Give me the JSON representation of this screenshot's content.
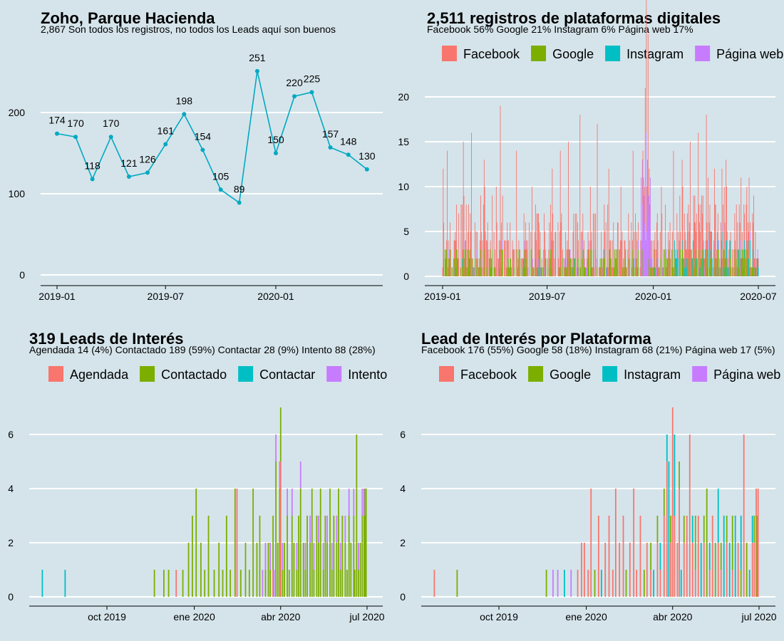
{
  "colors": {
    "background": "#d5e4eb",
    "line": "#00a9c1",
    "Facebook": "#f8766d",
    "Google": "#7cae00",
    "Instagram": "#00bfc4",
    "Página web": "#c77cff",
    "Agendada": "#f8766d",
    "Contactado": "#7cae00",
    "Contactar": "#00bfc4",
    "Intento": "#c77cff",
    "grid": "#ffffff"
  },
  "chart_data": [
    {
      "id": "monthly",
      "type": "line",
      "title": "Zoho, Parque Hacienda",
      "subtitle": "2,867 Son todos los registros, no todos los Leads aquí son buenos",
      "x": [
        "2019-01",
        "2019-02",
        "2019-03",
        "2019-04",
        "2019-05",
        "2019-06",
        "2019-07",
        "2019-08",
        "2019-09",
        "2019-10",
        "2019-11",
        "2019-12",
        "2020-01",
        "2020-02",
        "2020-03",
        "2020-04",
        "2020-05",
        "2020-06"
      ],
      "values": [
        174,
        170,
        118,
        170,
        121,
        126,
        161,
        198,
        154,
        105,
        89,
        251,
        150,
        220,
        225,
        157,
        148,
        130
      ],
      "ylim": [
        0,
        251
      ],
      "yticks": [
        0,
        100,
        200
      ],
      "xticks": [
        "2019-01",
        "2019-07",
        "2020-01"
      ],
      "grid": "horizontal",
      "legend": "none"
    },
    {
      "id": "platform-daily",
      "type": "bar",
      "stacked": true,
      "title": "2,511 registros de plataformas digitales",
      "subtitle": "Facebook 56% Google 21% Instagram 6% Página web 17%",
      "legend_position": "top",
      "series_names": [
        "Facebook",
        "Google",
        "Instagram",
        "Página web"
      ],
      "x_range": [
        "2019-01-01",
        "2020-07-01"
      ],
      "ylim": [
        0,
        21
      ],
      "yticks": [
        0,
        5,
        10,
        15,
        20
      ],
      "xticks": [
        "2019-01",
        "2019-07",
        "2020-01",
        "2020-07"
      ],
      "peaks": [
        {
          "date": "2019-01-02",
          "Facebook": 12
        },
        {
          "date": "2019-01-09",
          "Facebook": 14
        },
        {
          "date": "2019-02-06",
          "Facebook": 15
        },
        {
          "date": "2019-02-20",
          "Facebook": 16
        },
        {
          "date": "2019-03-14",
          "Facebook": 13
        },
        {
          "date": "2019-04-04",
          "Facebook": 10
        },
        {
          "date": "2019-04-11",
          "Facebook": 19
        },
        {
          "date": "2019-05-09",
          "Facebook": 14
        },
        {
          "date": "2019-06-05",
          "Facebook": 10
        },
        {
          "date": "2019-07-10",
          "Facebook": 12
        },
        {
          "date": "2019-07-24",
          "Facebook": 14
        },
        {
          "date": "2019-08-07",
          "Facebook": 15
        },
        {
          "date": "2019-08-27",
          "Facebook": 18
        },
        {
          "date": "2019-09-26",
          "Facebook": 17
        },
        {
          "date": "2019-10-16",
          "Facebook": 12
        },
        {
          "date": "2019-11-06",
          "Facebook": 10
        },
        {
          "date": "2019-11-27",
          "Facebook": 14
        },
        {
          "date": "2019-12-18",
          "Facebook": 8,
          "Página web": 13
        },
        {
          "date": "2019-12-20",
          "Facebook": 21,
          "Página web": 16
        },
        {
          "date": "2019-12-23",
          "Facebook": 18,
          "Página web": 9
        },
        {
          "date": "2020-01-15",
          "Facebook": 10
        },
        {
          "date": "2020-02-05",
          "Facebook": 14
        },
        {
          "date": "2020-02-20",
          "Facebook": 10,
          "Google": 3
        },
        {
          "date": "2020-03-05",
          "Facebook": 15
        },
        {
          "date": "2020-03-19",
          "Facebook": 13,
          "Google": 3
        },
        {
          "date": "2020-04-02",
          "Facebook": 18
        },
        {
          "date": "2020-04-16",
          "Facebook": 12
        },
        {
          "date": "2020-05-06",
          "Facebook": 9,
          "Instagram": 4
        },
        {
          "date": "2020-06-10",
          "Facebook": 8
        }
      ]
    },
    {
      "id": "leads-status",
      "type": "bar",
      "stacked": true,
      "title": "319 Leads de Interés",
      "subtitle": "Agendada 14 (4%) Contactado 189 (59%) Contactar 28 (9%) Intento 88 (28%)",
      "legend_position": "top",
      "series_names": [
        "Agendada",
        "Contactado",
        "Contactar",
        "Intento"
      ],
      "x_range": [
        "2019-07-20",
        "2020-07-05"
      ],
      "ylim": [
        0,
        7
      ],
      "yticks": [
        0,
        2,
        4,
        6
      ],
      "xticks": [
        "oct 2019",
        "ene 2020",
        "abr 2020",
        "jul 2020"
      ],
      "tick_dates": [
        "2019-10-01",
        "2020-01-01",
        "2020-04-01",
        "2020-07-01"
      ],
      "points": [
        {
          "date": "2019-07-25",
          "Contactar": 1
        },
        {
          "date": "2019-08-18",
          "Contactar": 1
        },
        {
          "date": "2019-11-20",
          "Contactado": 1
        },
        {
          "date": "2019-11-30",
          "Contactado": 1
        },
        {
          "date": "2019-12-05",
          "Contactado": 1
        },
        {
          "date": "2019-12-13",
          "Agendada": 1
        },
        {
          "date": "2019-12-20",
          "Contactado": 1
        },
        {
          "date": "2019-12-26",
          "Contactado": 2
        },
        {
          "date": "2019-12-30",
          "Contactado": 3
        },
        {
          "date": "2020-01-03",
          "Contactado": 4
        },
        {
          "date": "2020-01-08",
          "Contactado": 2
        },
        {
          "date": "2020-01-12",
          "Contactado": 1
        },
        {
          "date": "2020-01-16",
          "Contactado": 3
        },
        {
          "date": "2020-01-22",
          "Contactado": 1
        },
        {
          "date": "2020-01-27",
          "Contactado": 2
        },
        {
          "date": "2020-01-31",
          "Contactado": 1
        },
        {
          "date": "2020-02-04",
          "Contactado": 3
        },
        {
          "date": "2020-02-08",
          "Contactado": 1
        },
        {
          "date": "2020-02-13",
          "Contactado": 4
        },
        {
          "date": "2020-02-15",
          "Agendada": 4
        },
        {
          "date": "2020-02-19",
          "Contactado": 1
        },
        {
          "date": "2020-02-24",
          "Contactado": 2
        },
        {
          "date": "2020-02-28",
          "Contactado": 1
        },
        {
          "date": "2020-03-03",
          "Contactado": 4
        },
        {
          "date": "2020-03-07",
          "Contactado": 2
        },
        {
          "date": "2020-03-10",
          "Contactado": 3
        },
        {
          "date": "2020-03-13",
          "Intento": 1
        },
        {
          "date": "2020-03-16",
          "Contactado": 1,
          "Intento": 1
        },
        {
          "date": "2020-03-19",
          "Contactado": 2
        },
        {
          "date": "2020-03-21",
          "Contactado": 1,
          "Intento": 1
        },
        {
          "date": "2020-03-24",
          "Contactado": 2,
          "Agendada": 1
        },
        {
          "date": "2020-03-25",
          "Intento": 1
        },
        {
          "date": "2020-03-27",
          "Contactado": 5,
          "Intento": 1
        },
        {
          "date": "2020-03-29",
          "Contactado": 2
        },
        {
          "date": "2020-03-31",
          "Contactado": 4,
          "Intento": 1
        },
        {
          "date": "2020-04-01",
          "Contactado": 2,
          "Agendada": 5
        },
        {
          "date": "2020-04-03",
          "Contactado": 1,
          "Intento": 1
        },
        {
          "date": "2020-04-05",
          "Contactado": 2
        },
        {
          "date": "2020-04-08",
          "Contactado": 3,
          "Intento": 1
        },
        {
          "date": "2020-04-10",
          "Contactado": 1
        },
        {
          "date": "2020-04-13",
          "Contactado": 3,
          "Intento": 1
        },
        {
          "date": "2020-04-15",
          "Contactado": 2
        },
        {
          "date": "2020-04-18",
          "Contactado": 1,
          "Intento": 1
        },
        {
          "date": "2020-04-20",
          "Contactado": 3
        },
        {
          "date": "2020-04-22",
          "Contactado": 4,
          "Intento": 1
        },
        {
          "date": "2020-04-25",
          "Contactado": 2
        },
        {
          "date": "2020-04-27",
          "Contactado": 1,
          "Intento": 1
        },
        {
          "date": "2020-04-29",
          "Contactado": 3
        },
        {
          "date": "2020-05-02",
          "Contactado": 2,
          "Intento": 1
        },
        {
          "date": "2020-05-04",
          "Contactado": 4
        },
        {
          "date": "2020-05-06",
          "Contactado": 1,
          "Intento": 1
        },
        {
          "date": "2020-05-09",
          "Contactado": 3
        },
        {
          "date": "2020-05-11",
          "Contactado": 2,
          "Intento": 1
        },
        {
          "date": "2020-05-13",
          "Contactado": 4
        },
        {
          "date": "2020-05-16",
          "Contactado": 1,
          "Intento": 1
        },
        {
          "date": "2020-05-18",
          "Contactado": 3
        },
        {
          "date": "2020-05-20",
          "Contactado": 2,
          "Intento": 1
        },
        {
          "date": "2020-05-23",
          "Contactado": 4
        },
        {
          "date": "2020-05-25",
          "Contactado": 1,
          "Intento": 1
        },
        {
          "date": "2020-05-27",
          "Contactado": 3
        },
        {
          "date": "2020-05-30",
          "Contactado": 2,
          "Intento": 1
        },
        {
          "date": "2020-06-01",
          "Contactado": 4
        },
        {
          "date": "2020-06-03",
          "Contactado": 1,
          "Intento": 1
        },
        {
          "date": "2020-06-05",
          "Contactado": 3
        },
        {
          "date": "2020-06-08",
          "Contactado": 2,
          "Intento": 1
        },
        {
          "date": "2020-06-10",
          "Contactado": 1
        },
        {
          "date": "2020-06-12",
          "Contactado": 3,
          "Intento": 1
        },
        {
          "date": "2020-06-14",
          "Contactado": 2
        },
        {
          "date": "2020-06-17",
          "Contactado": 3,
          "Intento": 1
        },
        {
          "date": "2020-06-18",
          "Contactado": 1
        },
        {
          "date": "2020-06-20",
          "Contactado": 6
        },
        {
          "date": "2020-06-22",
          "Contactado": 1,
          "Intento": 1
        },
        {
          "date": "2020-06-24",
          "Contactado": 2
        },
        {
          "date": "2020-06-26",
          "Contactado": 3,
          "Intento": 1
        },
        {
          "date": "2020-06-28",
          "Contactado": 4
        },
        {
          "date": "2020-06-29",
          "Contactado": 3,
          "Intento": 1
        },
        {
          "date": "2020-06-30",
          "Contactado": 4
        }
      ]
    },
    {
      "id": "leads-platform",
      "type": "bar",
      "stacked": true,
      "title": "Lead de Interés por Plataforma",
      "subtitle": "Facebook 176 (55%) Google 58 (18%) Instagram 68 (21%) Página web 17 (5%)",
      "legend_position": "top",
      "series_names": [
        "Facebook",
        "Google",
        "Instagram",
        "Página web"
      ],
      "x_range": [
        "2019-07-20",
        "2020-07-05"
      ],
      "ylim": [
        0,
        7
      ],
      "yticks": [
        0,
        2,
        4,
        6
      ],
      "xticks": [
        "oct 2019",
        "ene 2020",
        "abr 2020",
        "jul 2020"
      ],
      "tick_dates": [
        "2019-10-01",
        "2020-01-01",
        "2020-04-01",
        "2020-07-01"
      ],
      "points": [
        {
          "date": "2019-07-25",
          "Facebook": 1
        },
        {
          "date": "2019-08-18",
          "Google": 1
        },
        {
          "date": "2019-11-20",
          "Google": 1
        },
        {
          "date": "2019-11-27",
          "Página web": 1
        },
        {
          "date": "2019-12-02",
          "Página web": 1
        },
        {
          "date": "2019-12-09",
          "Instagram": 1
        },
        {
          "date": "2019-12-16",
          "Página web": 1
        },
        {
          "date": "2019-12-23",
          "Facebook": 1
        },
        {
          "date": "2019-12-27",
          "Facebook": 2
        },
        {
          "date": "2019-12-30",
          "Facebook": 2
        },
        {
          "date": "2020-01-03",
          "Facebook": 1
        },
        {
          "date": "2020-01-06",
          "Facebook": 4
        },
        {
          "date": "2020-01-10",
          "Google": 1
        },
        {
          "date": "2020-01-14",
          "Facebook": 3
        },
        {
          "date": "2020-01-17",
          "Instagram": 1
        },
        {
          "date": "2020-01-21",
          "Facebook": 2
        },
        {
          "date": "2020-01-25",
          "Facebook": 3
        },
        {
          "date": "2020-01-29",
          "Facebook": 1
        },
        {
          "date": "2020-02-01",
          "Facebook": 4
        },
        {
          "date": "2020-02-05",
          "Facebook": 2
        },
        {
          "date": "2020-02-09",
          "Facebook": 3
        },
        {
          "date": "2020-02-12",
          "Google": 1
        },
        {
          "date": "2020-02-16",
          "Facebook": 2
        },
        {
          "date": "2020-02-20",
          "Facebook": 4
        },
        {
          "date": "2020-02-23",
          "Facebook": 1
        },
        {
          "date": "2020-02-27",
          "Facebook": 3
        },
        {
          "date": "2020-03-02",
          "Google": 1
        },
        {
          "date": "2020-03-05",
          "Facebook": 2
        },
        {
          "date": "2020-03-09",
          "Facebook": 1,
          "Google": 1
        },
        {
          "date": "2020-03-12",
          "Instagram": 1
        },
        {
          "date": "2020-03-16",
          "Facebook": 2,
          "Google": 1
        },
        {
          "date": "2020-03-19",
          "Facebook": 1,
          "Instagram": 1
        },
        {
          "date": "2020-03-23",
          "Facebook": 3,
          "Google": 1
        },
        {
          "date": "2020-03-26",
          "Facebook": 5,
          "Instagram": 1
        },
        {
          "date": "2020-03-28",
          "Instagram": 5
        },
        {
          "date": "2020-03-30",
          "Facebook": 2,
          "Google": 1
        },
        {
          "date": "2020-04-01",
          "Facebook": 7
        },
        {
          "date": "2020-04-03",
          "Facebook": 3,
          "Instagram": 3
        },
        {
          "date": "2020-04-06",
          "Facebook": 2
        },
        {
          "date": "2020-04-08",
          "Facebook": 4,
          "Google": 1
        },
        {
          "date": "2020-04-10",
          "Instagram": 1
        },
        {
          "date": "2020-04-13",
          "Facebook": 2,
          "Google": 1
        },
        {
          "date": "2020-04-16",
          "Facebook": 3
        },
        {
          "date": "2020-04-19",
          "Facebook": 6
        },
        {
          "date": "2020-04-22",
          "Facebook": 2,
          "Instagram": 1
        },
        {
          "date": "2020-04-25",
          "Facebook": 1,
          "Google": 2
        },
        {
          "date": "2020-04-28",
          "Facebook": 3
        },
        {
          "date": "2020-05-01",
          "Instagram": 2
        },
        {
          "date": "2020-05-04",
          "Facebook": 2,
          "Google": 1
        },
        {
          "date": "2020-05-07",
          "Google": 4
        },
        {
          "date": "2020-05-10",
          "Facebook": 1,
          "Instagram": 1
        },
        {
          "date": "2020-05-13",
          "Facebook": 3
        },
        {
          "date": "2020-05-16",
          "Google": 2
        },
        {
          "date": "2020-05-19",
          "Facebook": 2,
          "Instagram": 2
        },
        {
          "date": "2020-05-22",
          "Facebook": 1,
          "Google": 1
        },
        {
          "date": "2020-05-25",
          "Instagram": 3
        },
        {
          "date": "2020-05-28",
          "Facebook": 2,
          "Google": 1
        },
        {
          "date": "2020-05-31",
          "Instagram": 2
        },
        {
          "date": "2020-06-03",
          "Facebook": 1,
          "Google": 2
        },
        {
          "date": "2020-06-06",
          "Instagram": 3
        },
        {
          "date": "2020-06-09",
          "Facebook": 2
        },
        {
          "date": "2020-06-12",
          "Instagram": 2,
          "Google": 1
        },
        {
          "date": "2020-06-15",
          "Facebook": 6
        },
        {
          "date": "2020-06-18",
          "Google": 2
        },
        {
          "date": "2020-06-21",
          "Instagram": 1
        },
        {
          "date": "2020-06-24",
          "Facebook": 2,
          "Instagram": 1
        },
        {
          "date": "2020-06-26",
          "Facebook": 2,
          "Google": 1
        },
        {
          "date": "2020-06-28",
          "Facebook": 4
        },
        {
          "date": "2020-06-29",
          "Google": 3
        },
        {
          "date": "2020-06-30",
          "Facebook": 4
        }
      ]
    }
  ]
}
